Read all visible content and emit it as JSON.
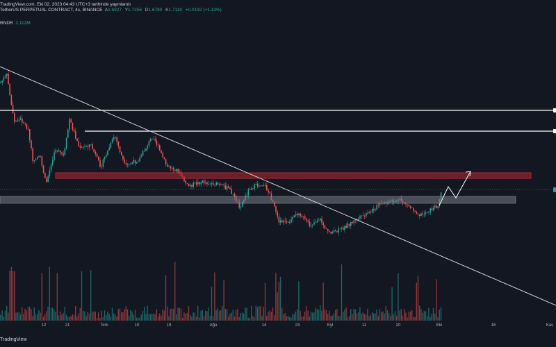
{
  "header": {
    "publisher_line": "TradingView.com, Eki 02, 2023 04:43 UTC+3 tarihinde yayınlandı",
    "symbol_line": "TetherUS PERPETUAL CONTRACT, 4s, BINANCE",
    "ohlc": {
      "open_key": "A",
      "open": "1.6927",
      "high_key": "Y",
      "high": "1.7256",
      "low_key": "D",
      "low": "1.6780",
      "close_key": "K",
      "close": "1.7119",
      "change": "+0.0192 (+1.13%)"
    },
    "volume_symbol": "RNDR",
    "volume_value": "2.112M"
  },
  "x_axis": {
    "ticks": [
      "12",
      "21",
      "Tem",
      "10",
      "19",
      "Ağu",
      "14",
      "23",
      "Eyl",
      "11",
      "20",
      "Eki",
      "16",
      "Kas"
    ]
  },
  "footer": {
    "logo_text": "TradingView"
  },
  "colors": {
    "background": "#131722",
    "up": "#26a69a",
    "down": "#ef5350",
    "resistance_zone": "#b22833",
    "support_zone": "#787b86",
    "trendline": "#d1d4dc"
  },
  "chart_data": {
    "type": "candlestick",
    "title": "TetherUS PERPETUAL CONTRACT, 4s, BINANCE",
    "xlabel": "",
    "ylabel": "",
    "annotations": [
      "descending trendline",
      "horizontal resistance lines",
      "resistance zone",
      "support zone",
      "projected path arrow"
    ],
    "grid": false
  }
}
